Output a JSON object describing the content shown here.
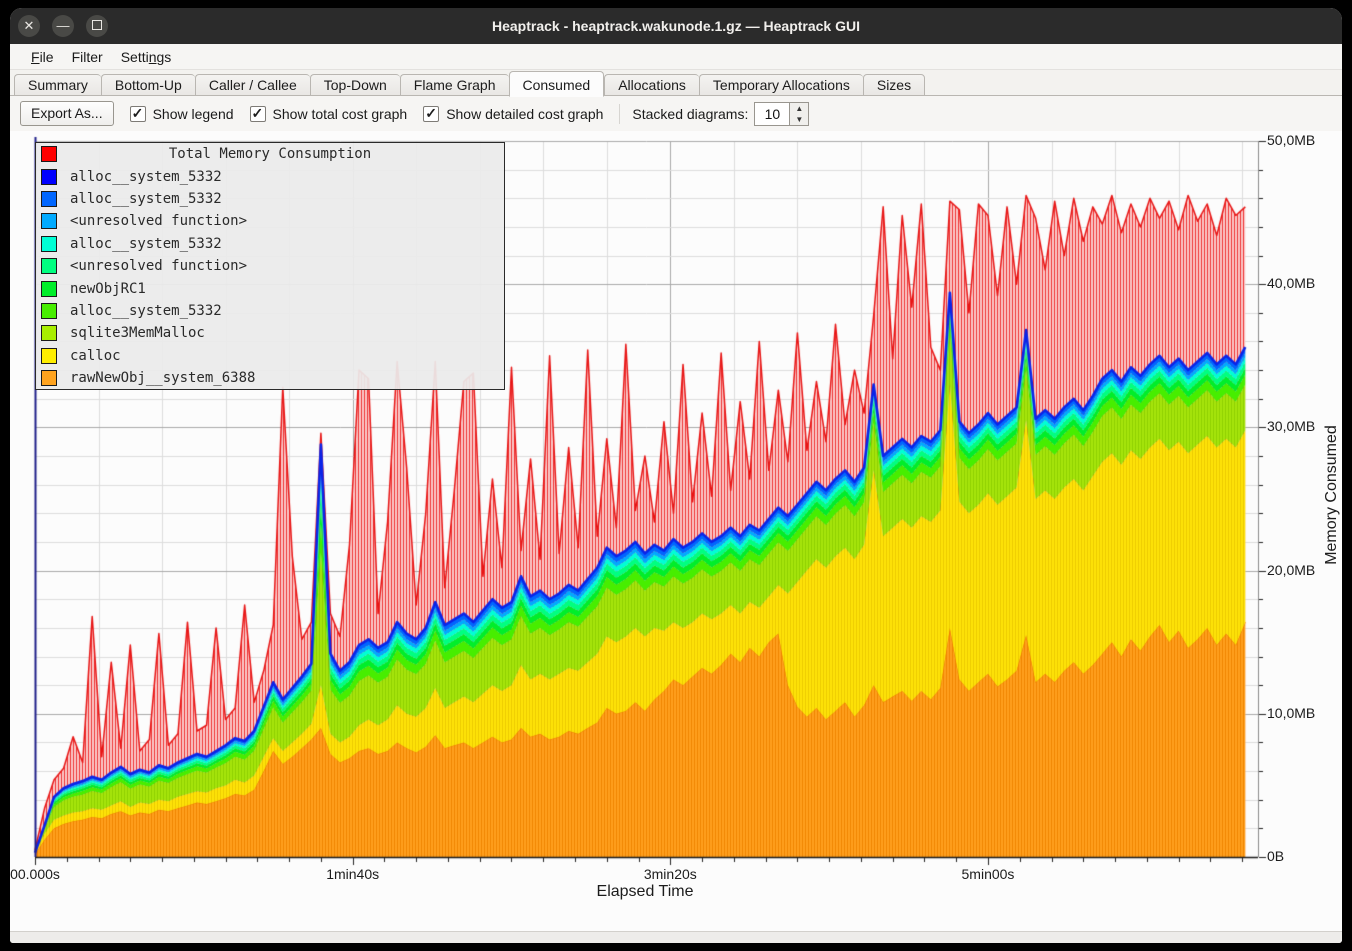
{
  "window": {
    "title": "Heaptrack - heaptrack.wakunode.1.gz — Heaptrack GUI"
  },
  "menu": {
    "items": [
      {
        "label": "File",
        "mnemonic": "F"
      },
      {
        "label": "Filter",
        "mnemonic": ""
      },
      {
        "label": "Settings",
        "mnemonic": "n"
      }
    ]
  },
  "tabs": {
    "active": "Consumed",
    "items": [
      "Summary",
      "Bottom-Up",
      "Caller / Callee",
      "Top-Down",
      "Flame Graph",
      "Consumed",
      "Allocations",
      "Temporary Allocations",
      "Sizes"
    ]
  },
  "toolbar": {
    "export_label": "Export As...",
    "checkboxes": [
      {
        "label": "Show legend",
        "checked": true
      },
      {
        "label": "Show total cost graph",
        "checked": true
      },
      {
        "label": "Show detailed cost graph",
        "checked": true
      }
    ],
    "stacked_label": "Stacked diagrams:",
    "stacked_value": "10"
  },
  "chart_data": {
    "type": "area",
    "x_axis": {
      "label": "Elapsed Time",
      "tick_labels": [
        "00.000s",
        "1min40s",
        "3min20s",
        "5min00s"
      ],
      "tick_seconds": [
        0,
        100,
        200,
        300
      ],
      "minor_tick_s": 10,
      "grid_s": 20,
      "max_s": 385
    },
    "y_axis": {
      "label": "Memory Consumed",
      "tick_labels": [
        "0B",
        "10,0MB",
        "20,0MB",
        "30,0MB",
        "40,0MB",
        "50,0MB"
      ],
      "tick_mb": [
        0,
        10,
        20,
        30,
        40,
        50
      ],
      "minor_tick_mb": 2,
      "max_mb": 50
    },
    "legend": [
      {
        "label": "Total Memory Consumption",
        "color": "#ff0000",
        "centered": true
      },
      {
        "label": "alloc__system_5332",
        "color": "#0000ff"
      },
      {
        "label": "alloc__system_5332",
        "color": "#0066ff"
      },
      {
        "label": "<unresolved function>",
        "color": "#00aaff"
      },
      {
        "label": "alloc__system_5332",
        "color": "#00ffd5"
      },
      {
        "label": "<unresolved function>",
        "color": "#00ff80"
      },
      {
        "label": "newObjRC1",
        "color": "#00ee2a"
      },
      {
        "label": "alloc__system_5332",
        "color": "#47ee00"
      },
      {
        "label": "sqlite3MemMalloc",
        "color": "#a8ee00"
      },
      {
        "label": "calloc",
        "color": "#ffee00"
      },
      {
        "label": "rawNewObj__system_6388",
        "color": "#ffa31e"
      }
    ],
    "samples": {
      "start_s": 0,
      "step_s": 3,
      "count": 128
    },
    "series": {
      "total_mb": [
        0.5,
        3.4,
        5.4,
        6.2,
        8.4,
        6.6,
        16.8,
        7.0,
        13.6,
        7.6,
        14.8,
        7.4,
        8.2,
        15.6,
        7.8,
        8.6,
        16.4,
        8.8,
        9.2,
        16.0,
        9.6,
        10.4,
        17.6,
        10.8,
        13.0,
        16.2,
        32.8,
        21.0,
        15.2,
        16.4,
        29.6,
        17.0,
        15.4,
        21.8,
        34.0,
        33.4,
        17.0,
        23.4,
        34.6,
        27.2,
        17.6,
        24.0,
        34.6,
        18.8,
        25.6,
        33.2,
        33.8,
        19.6,
        26.4,
        20.2,
        34.2,
        21.4,
        27.8,
        20.8,
        35.0,
        21.2,
        28.6,
        21.6,
        35.4,
        22.4,
        29.2,
        23.0,
        35.8,
        24.2,
        28.0,
        23.4,
        30.4,
        24.0,
        34.4,
        24.8,
        31.0,
        25.2,
        35.2,
        25.6,
        31.8,
        26.4,
        36.0,
        27.0,
        32.6,
        27.6,
        36.6,
        28.4,
        33.2,
        29.0,
        37.2,
        30.2,
        34.0,
        31.0,
        37.8,
        45.4,
        34.8,
        44.8,
        38.4,
        45.6,
        35.6,
        34.0,
        45.8,
        45.2,
        38.0,
        45.6,
        44.8,
        39.2,
        45.4,
        40.0,
        46.2,
        44.6,
        41.0,
        45.8,
        42.0,
        46.0,
        43.0,
        45.4,
        44.2,
        46.2,
        43.6,
        45.6,
        44.0,
        46.0,
        44.6,
        45.8,
        43.8,
        46.2,
        44.4,
        45.6,
        43.4,
        46.0,
        44.8,
        45.4
      ],
      "stack_top_mb": [
        0.3,
        2.2,
        4.2,
        4.8,
        5.1,
        5.3,
        5.6,
        5.4,
        5.9,
        6.3,
        5.8,
        6.1,
        5.9,
        6.4,
        6.2,
        6.6,
        6.9,
        7.2,
        7.0,
        7.4,
        7.8,
        8.3,
        8.1,
        8.8,
        10.5,
        12.2,
        11.0,
        11.8,
        12.6,
        13.5,
        28.8,
        14.2,
        13.0,
        13.6,
        14.8,
        15.2,
        14.6,
        15.0,
        16.4,
        15.6,
        15.2,
        16.0,
        17.8,
        16.2,
        16.6,
        17.0,
        16.4,
        17.2,
        18.0,
        17.4,
        17.8,
        19.6,
        18.2,
        18.6,
        18.0,
        18.4,
        19.0,
        18.6,
        19.4,
        20.2,
        21.6,
        21.0,
        21.4,
        22.0,
        21.2,
        21.8,
        21.4,
        22.2,
        21.6,
        22.0,
        22.6,
        22.0,
        22.4,
        23.0,
        22.4,
        23.2,
        22.8,
        23.6,
        24.4,
        23.8,
        24.6,
        25.4,
        26.2,
        25.6,
        26.4,
        27.0,
        26.2,
        27.2,
        33.0,
        28.0,
        28.6,
        29.2,
        28.6,
        29.4,
        29.0,
        29.8,
        39.4,
        30.4,
        29.6,
        30.2,
        31.0,
        30.2,
        30.8,
        31.4,
        36.8,
        30.6,
        31.2,
        30.6,
        31.4,
        32.0,
        31.2,
        32.2,
        33.4,
        34.0,
        33.2,
        34.2,
        33.6,
        34.4,
        35.0,
        34.2,
        34.8,
        34.0,
        34.6,
        35.2,
        34.4,
        35.0,
        34.4,
        35.6
      ],
      "yellow_top_mb": [
        0.3,
        1.6,
        2.6,
        2.9,
        3.1,
        3.2,
        3.4,
        3.3,
        3.6,
        3.9,
        3.5,
        3.8,
        3.7,
        4.0,
        3.9,
        4.2,
        4.4,
        4.6,
        4.5,
        4.8,
        5.0,
        5.4,
        5.2,
        5.7,
        7.0,
        8.3,
        7.4,
        8.0,
        8.6,
        9.3,
        12.0,
        8.6,
        8.0,
        8.4,
        9.2,
        9.6,
        9.2,
        9.6,
        10.6,
        10.0,
        9.8,
        10.4,
        11.8,
        10.4,
        10.8,
        11.2,
        10.8,
        11.4,
        12.0,
        11.6,
        12.0,
        13.4,
        12.4,
        12.8,
        12.4,
        12.8,
        13.2,
        13.0,
        13.6,
        14.2,
        15.4,
        15.0,
        15.4,
        16.0,
        15.4,
        16.0,
        15.8,
        16.4,
        16.0,
        16.4,
        17.0,
        16.6,
        17.0,
        17.6,
        17.0,
        17.8,
        17.4,
        18.2,
        19.0,
        18.4,
        19.2,
        20.0,
        20.8,
        20.2,
        21.0,
        21.6,
        20.8,
        21.8,
        27.0,
        22.4,
        23.0,
        23.6,
        23.0,
        23.8,
        23.4,
        24.2,
        33.0,
        24.8,
        24.0,
        24.6,
        25.4,
        24.6,
        25.2,
        25.8,
        30.5,
        25.0,
        25.6,
        25.0,
        25.8,
        26.4,
        25.6,
        26.6,
        27.6,
        28.2,
        27.4,
        28.4,
        27.8,
        28.6,
        29.2,
        28.4,
        29.0,
        28.2,
        28.8,
        29.4,
        28.6,
        29.2,
        28.6,
        29.8
      ],
      "orange_top_mb": [
        0.2,
        1.2,
        2.0,
        2.3,
        2.5,
        2.6,
        2.8,
        2.7,
        3.0,
        3.2,
        2.9,
        3.1,
        3.0,
        3.3,
        3.2,
        3.4,
        3.6,
        3.8,
        3.7,
        3.9,
        4.1,
        4.4,
        4.3,
        4.7,
        6.0,
        7.4,
        6.5,
        7.0,
        7.6,
        8.2,
        9.0,
        7.2,
        6.6,
        6.9,
        7.4,
        7.6,
        7.2,
        7.4,
        8.0,
        7.6,
        7.3,
        7.7,
        8.5,
        7.6,
        7.8,
        8.0,
        7.6,
        8.0,
        8.4,
        8.0,
        8.2,
        9.0,
        8.4,
        8.6,
        8.2,
        8.4,
        8.8,
        8.6,
        9.0,
        9.4,
        10.4,
        10.0,
        10.2,
        10.8,
        10.2,
        11.0,
        11.6,
        12.4,
        12.0,
        12.6,
        13.2,
        12.8,
        13.4,
        14.2,
        13.6,
        14.6,
        14.0,
        15.0,
        15.6,
        12.0,
        10.5,
        9.8,
        10.4,
        9.6,
        10.2,
        10.8,
        9.8,
        10.6,
        12.0,
        10.8,
        11.2,
        11.6,
        10.9,
        11.6,
        11.0,
        11.8,
        16.0,
        12.4,
        11.6,
        12.2,
        12.8,
        11.9,
        12.4,
        13.0,
        15.5,
        12.2,
        12.8,
        12.2,
        13.0,
        13.6,
        12.8,
        13.4,
        14.2,
        15.0,
        14.0,
        15.2,
        14.4,
        15.4,
        16.2,
        15.0,
        15.8,
        14.6,
        15.2,
        16.0,
        14.8,
        15.6,
        14.8,
        16.4
      ]
    },
    "upper_bands": [
      {
        "name": "sqlite3MemMalloc",
        "fraction": 0.55,
        "color": "#a6e40c"
      },
      {
        "name": "alloc__system_5332",
        "fraction": 0.12,
        "color": "#47ee00"
      },
      {
        "name": "newObjRC1",
        "fraction": 0.08,
        "color": "#00ee2a"
      },
      {
        "name": "<unresolved function>",
        "fraction": 0.07,
        "color": "#00ff80"
      },
      {
        "name": "alloc__system_5332",
        "fraction": 0.06,
        "color": "#00ffd5"
      },
      {
        "name": "<unresolved function>",
        "fraction": 0.05,
        "color": "#00aaff"
      },
      {
        "name": "alloc__system_5332",
        "fraction": 0.07,
        "color": "#0066ff"
      }
    ],
    "styles": {
      "total_fill": "#fbcaca",
      "total_hatch": "#ee3232",
      "total_stroke": "#e81616",
      "orange_fill": "#ffa01e",
      "orange_hatch": "#ef8400",
      "orange_stroke": "#f07800",
      "yellow_fill": "#ffe308",
      "yellow_hatch": "#ebca00",
      "sqlite_hatch": "#8fd000",
      "stack_line": "#0b24e8",
      "grid_minor": "#dcdcdc",
      "grid_major": "#a9a9a9",
      "axis_left": "#20208a",
      "axis_dark": "#1a1a1a",
      "plot_bg": "#fcfcfc"
    }
  }
}
